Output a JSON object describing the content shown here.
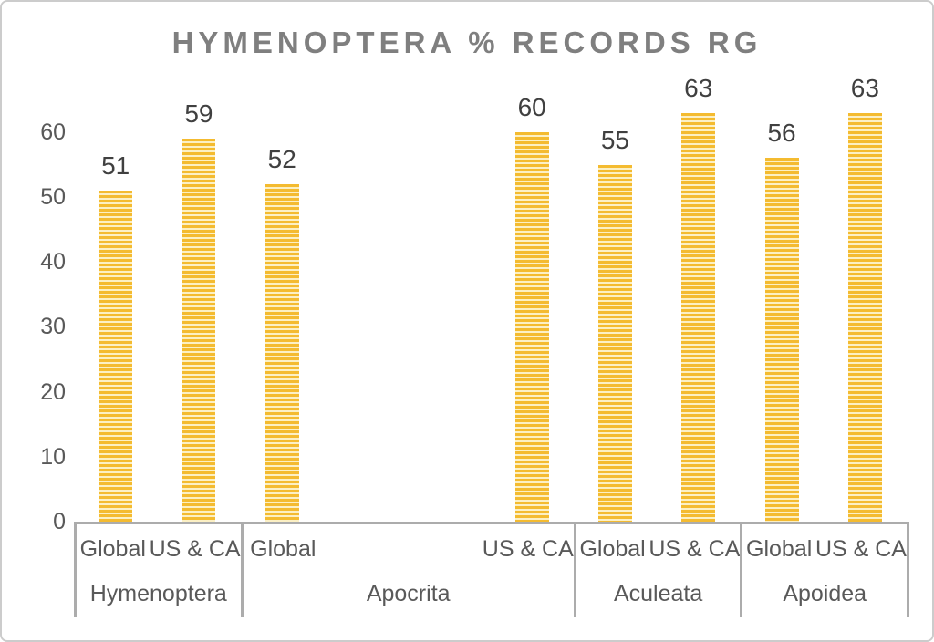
{
  "chart_data": {
    "type": "bar",
    "title": "HYMENOPTERA % RECORDS RG",
    "xlabel": "",
    "ylabel": "",
    "ylim": [
      0,
      64.6
    ],
    "y_ticks": [
      0,
      10,
      20,
      30,
      40,
      50,
      60
    ],
    "grid": false,
    "legend": false,
    "data_labels": true,
    "total_slots": 10,
    "categories": [
      "Hymenoptera",
      "Apocrita",
      "Aculeata",
      "Apoidea"
    ],
    "series_labels": [
      "Global",
      "US & CA"
    ],
    "groups": [
      {
        "name": "Hymenoptera",
        "slot_start": 0,
        "slot_count": 2,
        "points": [
          {
            "label": "Global",
            "value": 51,
            "slot": 0
          },
          {
            "label": "US & CA",
            "value": 59,
            "slot": 1
          }
        ]
      },
      {
        "name": "Apocrita",
        "slot_start": 2,
        "slot_count": 4,
        "points": [
          {
            "label": "Global",
            "value": 52,
            "slot": 2
          },
          {
            "label": "US & CA",
            "value": 60,
            "slot": 5
          }
        ]
      },
      {
        "name": "Aculeata",
        "slot_start": 6,
        "slot_count": 2,
        "points": [
          {
            "label": "Global",
            "value": 55,
            "slot": 6
          },
          {
            "label": "US & CA",
            "value": 63,
            "slot": 7
          }
        ]
      },
      {
        "name": "Apoidea",
        "slot_start": 8,
        "slot_count": 2,
        "points": [
          {
            "label": "Global",
            "value": 56,
            "slot": 8
          },
          {
            "label": "US & CA",
            "value": 63,
            "slot": 9
          }
        ]
      }
    ],
    "colors": {
      "bar_gold": "#F4BB30",
      "bar_stripe_light": "#FCF0C4",
      "axis_line": "#ACACAC",
      "title_text": "#7F7F7F",
      "label_text": "#404040",
      "axis_text": "#595959",
      "chart_border": "#CCCCCC",
      "background": "#FFFFFF"
    }
  }
}
